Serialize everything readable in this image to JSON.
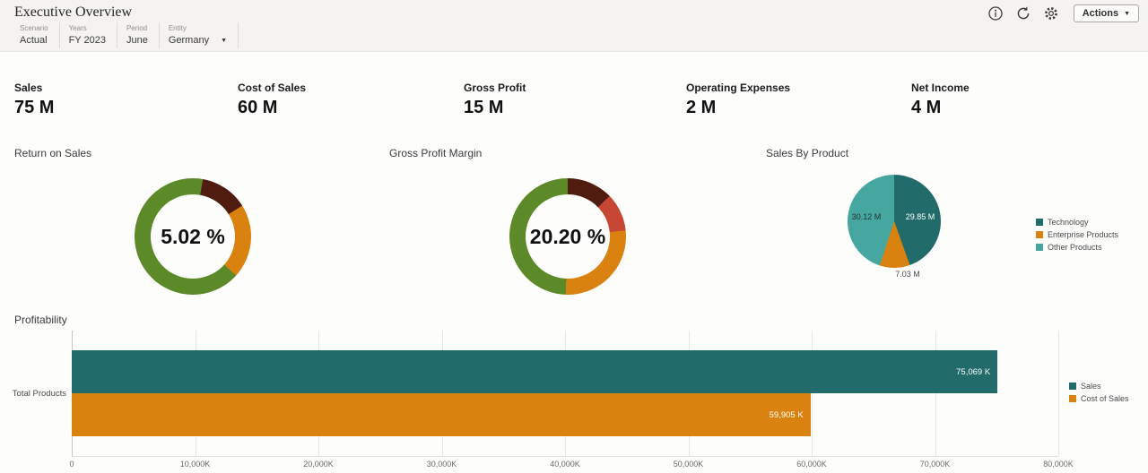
{
  "header": {
    "title": "Executive Overview",
    "actions_button": "Actions",
    "icons": [
      "info",
      "refresh",
      "settings"
    ]
  },
  "pov": {
    "items": [
      {
        "label": "Scenario",
        "value": "Actual"
      },
      {
        "label": "Years",
        "value": "FY 2023"
      },
      {
        "label": "Period",
        "value": "June"
      },
      {
        "label": "Entity",
        "value": "Germany"
      }
    ]
  },
  "kpis": [
    {
      "label": "Sales",
      "value": "75 M"
    },
    {
      "label": "Cost of Sales",
      "value": "60 M"
    },
    {
      "label": "Gross Profit",
      "value": "15 M"
    },
    {
      "label": "Operating Expenses",
      "value": "2 M"
    },
    {
      "label": "Net Income",
      "value": "4 M"
    }
  ],
  "colors": {
    "teal_dark": "#226b6b",
    "teal_medium": "#46a6a0",
    "orange": "#d9820f",
    "green": "#5d8a28",
    "red": "#c74634",
    "maroon": "#4f1c0f"
  },
  "gauges": [
    {
      "title": "Return on Sales",
      "display": "5.02 %",
      "segments": [
        {
          "color": "#5d8a28",
          "from": 0,
          "to": 10
        },
        {
          "color": "#4f1c0f",
          "from": 10,
          "to": 58
        },
        {
          "color": "#d9820f",
          "from": 58,
          "to": 132
        },
        {
          "color": "#5d8a28",
          "from": 132,
          "to": 360
        }
      ]
    },
    {
      "title": "Gross Profit Margin",
      "display": "20.20 %",
      "segments": [
        {
          "color": "#4f1c0f",
          "from": 0,
          "to": 46
        },
        {
          "color": "#c74634",
          "from": 46,
          "to": 84
        },
        {
          "color": "#d9820f",
          "from": 84,
          "to": 182
        },
        {
          "color": "#5d8a28",
          "from": 182,
          "to": 360
        }
      ]
    }
  ],
  "pie": {
    "title": "Sales By Product",
    "slices": [
      {
        "name": "Technology",
        "value": 29.85,
        "label": "29.85 M",
        "color": "#226b6b"
      },
      {
        "name": "Enterprise Products",
        "value": 7.03,
        "label": "7.03 M",
        "color": "#d9820f"
      },
      {
        "name": "Other Products",
        "value": 30.12,
        "label": "30.12 M",
        "color": "#46a6a0"
      }
    ]
  },
  "bar": {
    "title": "Profitability",
    "category": "Total Products",
    "xmax": 80000,
    "xticks": [
      "0",
      "10,000K",
      "20,000K",
      "30,000K",
      "40,000K",
      "50,000K",
      "60,000K",
      "70,000K",
      "80,000K"
    ],
    "series": [
      {
        "name": "Sales",
        "value": 75069,
        "label": "75,069 K",
        "color": "#226b6b"
      },
      {
        "name": "Cost of Sales",
        "value": 59905,
        "label": "59,905 K",
        "color": "#d9820f"
      }
    ]
  },
  "chart_data": [
    {
      "type": "gauge",
      "title": "Return on Sales",
      "value": 5.02,
      "unit": "%",
      "display": "5.02 %"
    },
    {
      "type": "gauge",
      "title": "Gross Profit Margin",
      "value": 20.2,
      "unit": "%",
      "display": "20.20 %"
    },
    {
      "type": "pie",
      "title": "Sales By Product",
      "labels": [
        "Technology",
        "Enterprise Products",
        "Other Products"
      ],
      "values": [
        29.85,
        7.03,
        30.12
      ],
      "unit": "M",
      "legend_position": "right"
    },
    {
      "type": "bar",
      "title": "Profitability",
      "orientation": "horizontal",
      "categories": [
        "Total Products"
      ],
      "series": [
        {
          "name": "Sales",
          "values": [
            75069
          ]
        },
        {
          "name": "Cost of Sales",
          "values": [
            59905
          ]
        }
      ],
      "unit": "K",
      "xlim": [
        0,
        80000
      ],
      "xticks": [
        "0",
        "10,000K",
        "20,000K",
        "30,000K",
        "40,000K",
        "50,000K",
        "60,000K",
        "70,000K",
        "80,000K"
      ],
      "grid": true,
      "legend_position": "right"
    }
  ]
}
